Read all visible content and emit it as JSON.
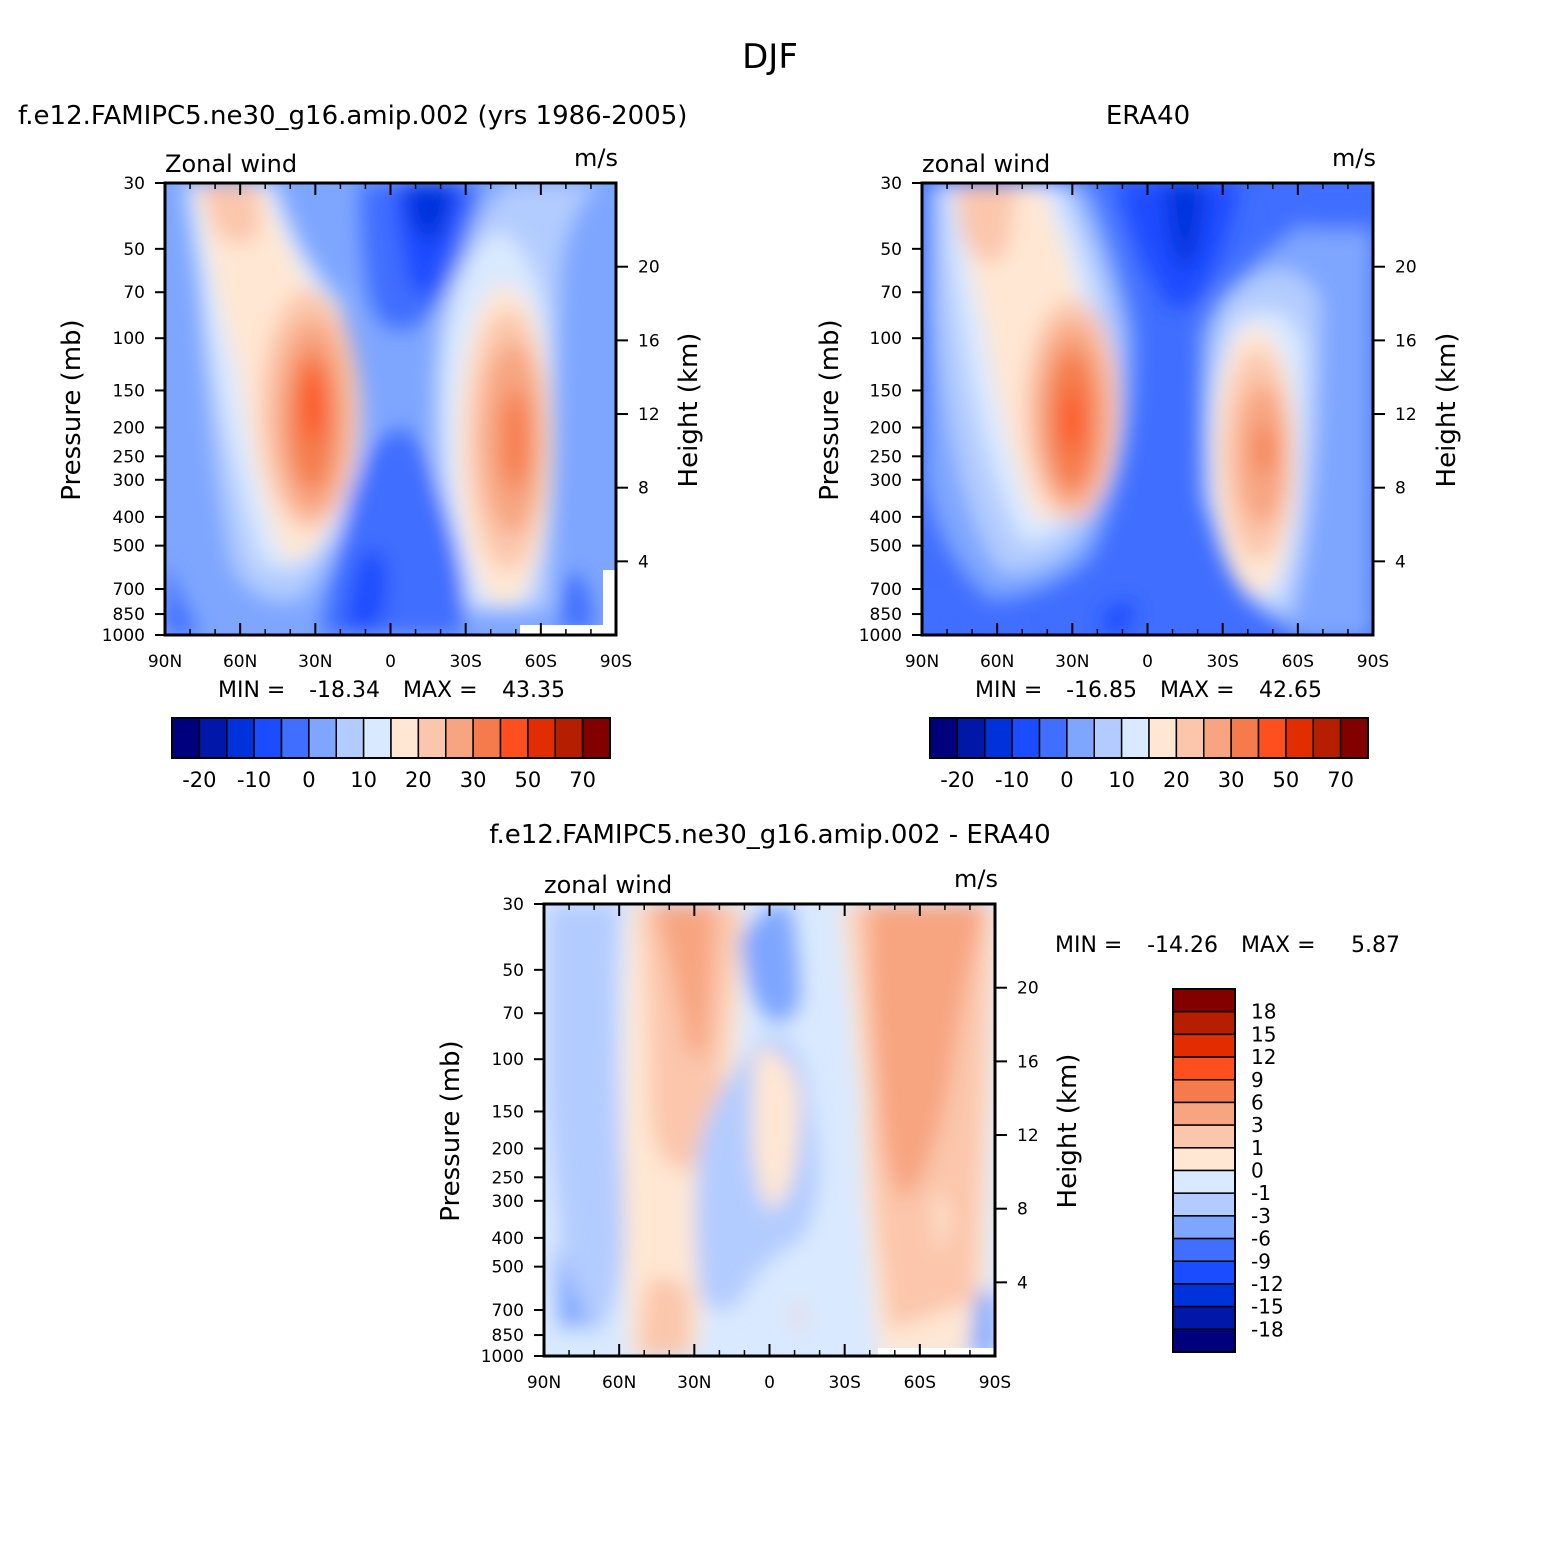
{
  "page": {
    "title": "DJF"
  },
  "colors": {
    "wind_levels": [
      "#00007f",
      "#0017a8",
      "#0032db",
      "#1c4cff",
      "#406eff",
      "#7ea6ff",
      "#b3ccff",
      "#d9e9ff",
      "#ffe7d3",
      "#fbc6ac",
      "#f7a480",
      "#f57b4c",
      "#ff4f1f",
      "#e12d00",
      "#b51f00",
      "#820000"
    ],
    "diff_levels": [
      "#00007f",
      "#0017a8",
      "#0032db",
      "#1c4cff",
      "#406eff",
      "#7ea6ff",
      "#b3ccff",
      "#d9e9ff",
      "#ffe7d3",
      "#fbc6ac",
      "#f7a480",
      "#f57b4c",
      "#ff4f1f",
      "#e12d00",
      "#b51f00",
      "#820000"
    ]
  },
  "chart_data": [
    {
      "type": "heatmap",
      "id": "model",
      "title": "f.e12.FAMIPC5.ne30_g16.amip.002 (yrs 1986-2005)",
      "left_label": "Zonal wind",
      "units": "m/s",
      "ylabel": "Pressure (mb)",
      "ylabel_right": "Height (km)",
      "x_ticks": [
        "90N",
        "60N",
        "30N",
        "0",
        "30S",
        "60S",
        "90S"
      ],
      "y_ticks": [
        "30",
        "50",
        "70",
        "100",
        "150",
        "200",
        "250",
        "300",
        "400",
        "500",
        "700",
        "850",
        "1000"
      ],
      "y_ticks_right": [
        "20",
        "16",
        "12",
        "8",
        "4"
      ],
      "stats": {
        "min_label": "MIN = ",
        "min": "-18.34",
        "max_label": "MAX = ",
        "max": "43.35"
      },
      "colorbar_labels": [
        "-20",
        "-10",
        "0",
        "10",
        "20",
        "30",
        "50",
        "70"
      ],
      "features": [
        {
          "lat": 30,
          "p": 200,
          "value": 43
        },
        {
          "lat": -50,
          "p": 220,
          "value": 40
        },
        {
          "lat": -15,
          "p": 40,
          "value": -18
        },
        {
          "lat": 60,
          "p": 30,
          "value": 20
        }
      ]
    },
    {
      "type": "heatmap",
      "id": "obs",
      "title": "ERA40",
      "left_label": "zonal wind",
      "units": "m/s",
      "ylabel": "Pressure (mb)",
      "ylabel_right": "Height (km)",
      "x_ticks": [
        "90N",
        "60N",
        "30N",
        "0",
        "30S",
        "60S",
        "90S"
      ],
      "y_ticks": [
        "30",
        "50",
        "70",
        "100",
        "150",
        "200",
        "250",
        "300",
        "400",
        "500",
        "700",
        "850",
        "1000"
      ],
      "y_ticks_right": [
        "20",
        "16",
        "12",
        "8",
        "4"
      ],
      "stats": {
        "min_label": "MIN = ",
        "min": "-16.85",
        "max_label": "MAX = ",
        "max": "42.65"
      },
      "colorbar_labels": [
        "-20",
        "-10",
        "0",
        "10",
        "20",
        "30",
        "50",
        "70"
      ],
      "features": [
        {
          "lat": 30,
          "p": 200,
          "value": 42
        },
        {
          "lat": -45,
          "p": 250,
          "value": 36
        },
        {
          "lat": -15,
          "p": 40,
          "value": -16
        },
        {
          "lat": 60,
          "p": 30,
          "value": 20
        }
      ]
    },
    {
      "type": "heatmap",
      "id": "diff",
      "title": "f.e12.FAMIPC5.ne30_g16.amip.002 - ERA40",
      "left_label": "zonal wind",
      "units": "m/s",
      "ylabel": "Pressure (mb)",
      "ylabel_right": "Height (km)",
      "x_ticks": [
        "90N",
        "60N",
        "30N",
        "0",
        "30S",
        "60S",
        "90S"
      ],
      "y_ticks": [
        "30",
        "50",
        "70",
        "100",
        "150",
        "200",
        "250",
        "300",
        "400",
        "500",
        "700",
        "850",
        "1000"
      ],
      "y_ticks_right": [
        "20",
        "16",
        "12",
        "8",
        "4"
      ],
      "stats": {
        "min_label": "MIN = ",
        "min": "-14.26",
        "max_label": "MAX = ",
        "max": "5.87"
      },
      "colorbar_labels": [
        "18",
        "15",
        "12",
        "9",
        "6",
        "3",
        "1",
        "0",
        "-1",
        "-3",
        "-6",
        "-9",
        "-12",
        "-15",
        "-18"
      ],
      "features": [
        {
          "lat": -55,
          "p": 100,
          "value": 5.8
        },
        {
          "lat": 35,
          "p": 70,
          "value": 4
        },
        {
          "lat": -5,
          "p": 40,
          "value": -5
        },
        {
          "lat": 80,
          "p": 200,
          "value": -2
        }
      ]
    }
  ]
}
